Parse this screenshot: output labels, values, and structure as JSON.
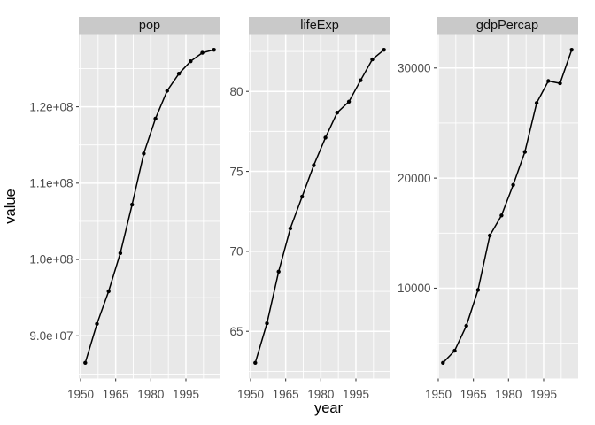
{
  "chart_data": {
    "type": "line",
    "title": "",
    "xlabel": "year",
    "ylabel": "value",
    "legend": "none",
    "grid": "on",
    "x": [
      1952,
      1957,
      1962,
      1967,
      1972,
      1977,
      1982,
      1987,
      1992,
      1997,
      2002,
      2007
    ],
    "xlim": [
      1949.25,
      2009.75
    ],
    "x_major_ticks": [
      1950,
      1965,
      1980,
      1995
    ],
    "x_tick_labels": [
      "1950",
      "1965",
      "1980",
      "1995"
    ],
    "x_minor_ticks": [
      1957.5,
      1972.5,
      1987.5,
      2002.5
    ],
    "facets": [
      {
        "label": "pop",
        "values": [
          86459025,
          91563009,
          95831757,
          100825279,
          107188273,
          113872473,
          118454974,
          122091325,
          124329269,
          125956499,
          127065841,
          127467972
        ],
        "ylim": [
          84408578,
          129518419
        ],
        "y_major_ticks": [
          90000000,
          100000000,
          110000000,
          120000000
        ],
        "y_tick_labels": [
          "9.0e+07",
          "1.0e+08",
          "1.1e+08",
          "1.2e+08"
        ],
        "y_minor_ticks": [
          85000000,
          95000000,
          105000000,
          115000000,
          125000000
        ]
      },
      {
        "label": "lifeExp",
        "values": [
          63.03,
          65.5,
          68.73,
          71.43,
          73.42,
          75.38,
          77.11,
          78.67,
          79.36,
          80.69,
          82.0,
          82.603
        ],
        "ylim": [
          62.051,
          83.582
        ],
        "y_major_ticks": [
          65,
          70,
          75,
          80
        ],
        "y_tick_labels": [
          "65",
          "70",
          "75",
          "80"
        ],
        "y_minor_ticks": [
          62.5,
          67.5,
          72.5,
          77.5,
          82.5
        ]
      },
      {
        "label": "gdpPercap",
        "values": [
          3216.956,
          4317.694,
          6576.649,
          9847.789,
          14778.786,
          16610.377,
          19384.106,
          22375.942,
          26824.895,
          28816.585,
          28604.592,
          31656.068
        ],
        "ylim": [
          1795.0,
          33078.02
        ],
        "y_major_ticks": [
          10000,
          20000,
          30000
        ],
        "y_tick_labels": [
          "10000",
          "20000",
          "30000"
        ],
        "y_minor_ticks": [
          5000,
          15000,
          25000
        ]
      }
    ],
    "style": {
      "panel_bg": "#e8e8e8",
      "strip_bg": "#c9c9c9",
      "grid_color": "#ffffff",
      "line_color": "#000000",
      "point_color": "#000000",
      "tick_mark_color": "#404040",
      "tick_text_color": "#4d4d4d",
      "title_color": "#000000"
    }
  }
}
